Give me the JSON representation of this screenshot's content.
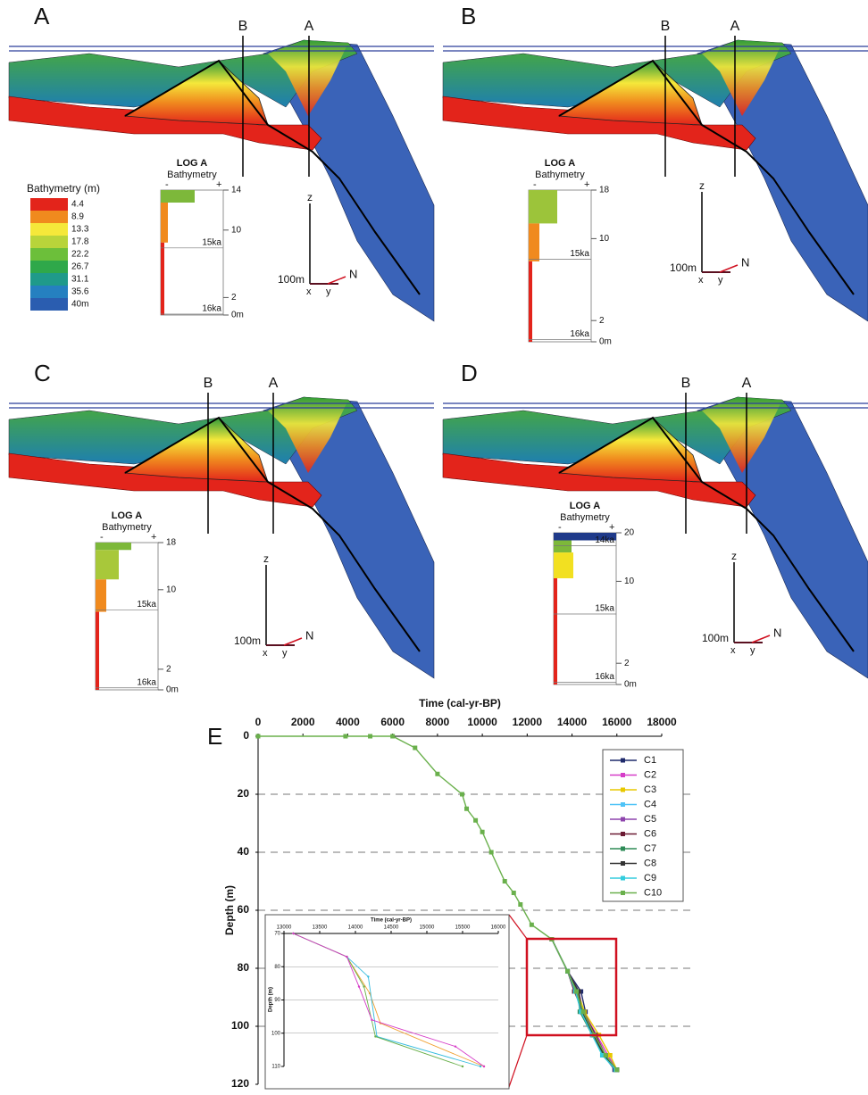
{
  "panels": [
    {
      "letter": "A",
      "sections": [
        "B",
        "A"
      ],
      "legend": {
        "title": "Bathymetry (m)",
        "labels": [
          "4.4",
          "8.9",
          "13.3",
          "17.8",
          "22.2",
          "26.7",
          "31.1",
          "35.6",
          "40m"
        ]
      },
      "log": {
        "title": "LOG A",
        "subtitle": "Bathymetry",
        "minus": "-",
        "plus": "+",
        "ticks": [
          "14",
          "10",
          "2",
          "0m"
        ],
        "ages": [
          "15ka",
          "16ka"
        ]
      },
      "axes": {
        "z": "z",
        "x": "x",
        "y": "y",
        "n": "N",
        "scale": "100m"
      }
    },
    {
      "letter": "B",
      "sections": [
        "B",
        "A"
      ],
      "log": {
        "title": "LOG A",
        "subtitle": "Bathymetry",
        "minus": "-",
        "plus": "+",
        "ticks": [
          "18",
          "10",
          "2",
          "0m"
        ],
        "ages": [
          "15ka",
          "16ka"
        ]
      },
      "axes": {
        "z": "z",
        "x": "x",
        "y": "y",
        "n": "N",
        "scale": "100m"
      }
    },
    {
      "letter": "C",
      "sections": [
        "B",
        "A"
      ],
      "log": {
        "title": "LOG A",
        "subtitle": "Bathymetry",
        "minus": "-",
        "plus": "+",
        "ticks": [
          "18",
          "10",
          "2",
          "0m"
        ],
        "ages": [
          "15ka",
          "16ka"
        ]
      },
      "axes": {
        "z": "z",
        "x": "x",
        "y": "y",
        "n": "N",
        "scale": "100m"
      }
    },
    {
      "letter": "D",
      "sections": [
        "B",
        "A"
      ],
      "log": {
        "title": "LOG A",
        "subtitle": "Bathymetry",
        "minus": "-",
        "plus": "+",
        "ticks": [
          "20",
          "10",
          "2",
          "0m"
        ],
        "ages": [
          "14ka",
          "15ka",
          "16ka"
        ]
      },
      "axes": {
        "z": "z",
        "x": "x",
        "y": "y",
        "n": "N",
        "scale": "100m"
      }
    }
  ],
  "chart_data": [
    {
      "type": "line",
      "label": "E",
      "xlabel": "Time (cal-yr-BP)",
      "ylabel": "Depth (m)",
      "xlim": [
        0,
        18000
      ],
      "xticks": [
        0,
        2000,
        4000,
        6000,
        8000,
        10000,
        12000,
        14000,
        16000,
        18000
      ],
      "ylim": [
        0,
        120
      ],
      "yticks": [
        0,
        20,
        40,
        60,
        80,
        100,
        120
      ],
      "y_inverted": true,
      "grid": true,
      "legend": "upper right",
      "series": [
        {
          "name": "C1",
          "color": "#1f2a6b",
          "x": [
            13100,
            13800,
            14400,
            14600,
            14900,
            15400,
            15900
          ],
          "values": [
            70,
            81,
            88,
            95,
            103,
            110,
            115
          ]
        },
        {
          "name": "C2",
          "color": "#d63cc8",
          "x": [
            13100,
            13800,
            14300,
            14500,
            15100,
            15600,
            16000
          ],
          "values": [
            70,
            81,
            88,
            95,
            103,
            110,
            115
          ]
        },
        {
          "name": "C3",
          "color": "#e8c800",
          "x": [
            13100,
            13800,
            14250,
            14550,
            15200,
            15700,
            16000
          ],
          "values": [
            70,
            81,
            88,
            95,
            103,
            110,
            115
          ]
        },
        {
          "name": "C4",
          "color": "#4fc3f7",
          "x": [
            13100,
            13800,
            14150,
            14450,
            14950,
            15500,
            16000
          ],
          "values": [
            70,
            81,
            88,
            95,
            103,
            110,
            115
          ]
        },
        {
          "name": "C5",
          "color": "#8e44ad",
          "x": [
            13100,
            13800,
            14200,
            14400,
            15000,
            15450,
            15950
          ],
          "values": [
            70,
            81,
            88,
            95,
            103,
            110,
            115
          ]
        },
        {
          "name": "C6",
          "color": "#6b1a33",
          "x": [
            13100,
            13800,
            14100,
            14500,
            15050,
            15500,
            16000
          ],
          "values": [
            70,
            81,
            88,
            95,
            103,
            110,
            115
          ]
        },
        {
          "name": "C7",
          "color": "#2e8b57",
          "x": [
            13100,
            13800,
            14250,
            14350,
            14900,
            15400,
            16000
          ],
          "values": [
            70,
            81,
            88,
            95,
            103,
            110,
            115
          ]
        },
        {
          "name": "C8",
          "color": "#333333",
          "x": [
            13100,
            13800,
            14300,
            14450,
            14950,
            15450,
            16000
          ],
          "values": [
            70,
            81,
            88,
            95,
            103,
            110,
            115
          ]
        },
        {
          "name": "C9",
          "color": "#33ccdd",
          "x": [
            13100,
            13800,
            14150,
            14400,
            14900,
            15350,
            15950
          ],
          "values": [
            70,
            81,
            88,
            95,
            103,
            110,
            115
          ]
        },
        {
          "name": "C10",
          "color": "#6ab04c",
          "x": [
            0,
            3900,
            5000,
            6000,
            7000,
            8000,
            9100,
            9300,
            9700,
            10000,
            10400,
            11000,
            11400,
            11700,
            12200,
            13100,
            13800,
            14200,
            14500,
            15000,
            15500,
            16000
          ],
          "values": [
            0,
            0,
            0,
            0,
            4,
            13,
            20,
            25,
            29,
            33,
            40,
            50,
            54,
            58,
            65,
            70,
            81,
            88,
            95,
            103,
            110,
            115
          ]
        }
      ]
    },
    {
      "type": "line",
      "xlabel": "Time (cal-yr-BP)",
      "ylabel": "Depth (m)",
      "xlim": [
        13000,
        16000
      ],
      "xticks": [
        13000,
        13500,
        14000,
        14500,
        15000,
        15500,
        16000
      ],
      "ylim": [
        70,
        110
      ],
      "yticks": [
        70,
        80,
        90,
        100,
        110
      ],
      "y_inverted": true,
      "grid": true,
      "series": [
        {
          "color": "#f0a030",
          "x": [
            13130,
            13880,
            14200,
            14350,
            15800
          ],
          "values": [
            70,
            77,
            88,
            97,
            110
          ]
        },
        {
          "color": "#33bbdd",
          "x": [
            13130,
            13880,
            14180,
            14300,
            15750
          ],
          "values": [
            70,
            77,
            83,
            101,
            110
          ]
        },
        {
          "color": "#6ab04c",
          "x": [
            13130,
            13880,
            14120,
            14280,
            15500
          ],
          "values": [
            70,
            77,
            86,
            101,
            110
          ]
        },
        {
          "color": "#d63cc8",
          "x": [
            13130,
            13880,
            14050,
            14230,
            15400,
            15800
          ],
          "values": [
            70,
            77,
            86,
            96,
            104,
            110
          ]
        }
      ]
    }
  ]
}
